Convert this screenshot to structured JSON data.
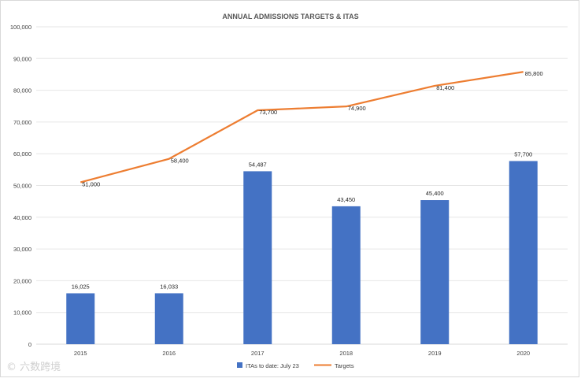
{
  "chart_data": {
    "type": "bar",
    "title": "ANNUAL ADMISSIONS TARGETS & ITAS",
    "categories": [
      "2015",
      "2016",
      "2017",
      "2018",
      "2019",
      "2020"
    ],
    "series": [
      {
        "name": "ITAs to date: July 23",
        "kind": "bar",
        "color": "#4472c4",
        "values": [
          16025,
          16033,
          54487,
          43450,
          45400,
          57700
        ],
        "labels": [
          "16,025",
          "16,033",
          "54,487",
          "43,450",
          "45,400",
          "57,700"
        ]
      },
      {
        "name": "Targets",
        "kind": "line",
        "color": "#ed7d31",
        "values": [
          51000,
          58400,
          73700,
          74900,
          81400,
          85800
        ],
        "labels": [
          "51,000",
          "58,400",
          "73,700",
          "74,900",
          "81,400",
          "85,800"
        ]
      }
    ],
    "ylim": [
      0,
      100000
    ],
    "yticks": [
      0,
      10000,
      20000,
      30000,
      40000,
      50000,
      60000,
      70000,
      80000,
      90000,
      100000
    ],
    "ytick_labels": [
      "0",
      "10,000",
      "20,000",
      "30,000",
      "40,000",
      "50,000",
      "60,000",
      "70,000",
      "80,000",
      "90,000",
      "100,000"
    ],
    "grid": true,
    "legend_position": "bottom",
    "xlabel": "",
    "ylabel": ""
  },
  "watermark": "© 六数跨境"
}
